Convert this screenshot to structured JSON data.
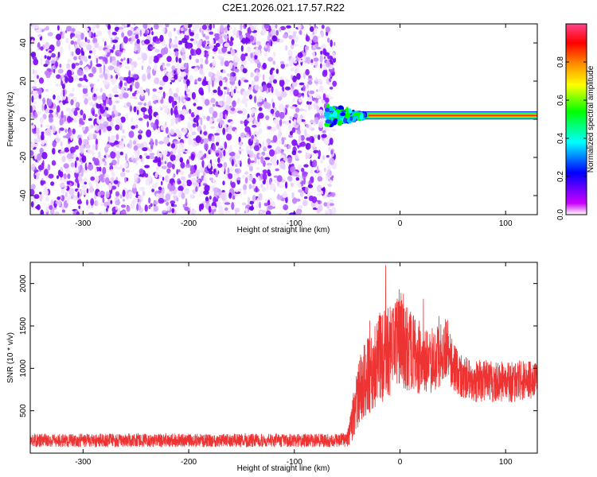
{
  "chart_data": [
    {
      "type": "heatmap",
      "title": "C2E1.2026.021.17.57.R22",
      "xlabel": "Height of straight line (km)",
      "ylabel": "Frequency (Hz)",
      "xlim": [
        -350,
        130
      ],
      "ylim": [
        -50,
        50
      ],
      "x_ticks": [
        -300,
        -200,
        -100,
        0,
        100
      ],
      "y_ticks": [
        -40,
        -20,
        0,
        20,
        40
      ],
      "colorbar": {
        "label": "Normalized spectral amplitude",
        "range": [
          0,
          1
        ],
        "ticks": [
          "0.0",
          "0.2",
          "0.4",
          "0.6",
          "0.8"
        ],
        "colors": [
          "#ffffff",
          "#cc00ff",
          "#0000ff",
          "#00ffff",
          "#00ff00",
          "#ffff00",
          "#ff8000",
          "#ff0000",
          "#ff4488"
        ]
      },
      "noise_region": {
        "x_range": [
          -350,
          -65
        ],
        "amplitude_range": [
          0.0,
          0.2
        ]
      },
      "signal_band": {
        "x_range": [
          -70,
          130
        ],
        "frequency_hz": 2,
        "peak_amplitude": 0.9
      },
      "grid": false
    },
    {
      "type": "line",
      "xlabel": "Height of straight line (km)",
      "ylabel": "SNR (10 * v/v)",
      "xlim": [
        -350,
        130
      ],
      "ylim": [
        0,
        2250
      ],
      "x_ticks": [
        -300,
        -200,
        -100,
        0,
        100
      ],
      "y_ticks": [
        500,
        1000,
        1500,
        2000
      ],
      "series": [
        {
          "color": "#ee3333",
          "x": [
            -350,
            -300,
            -250,
            -200,
            -150,
            -100,
            -60,
            -50,
            -45,
            -40,
            -35,
            -30,
            -25,
            -20,
            -15,
            -10,
            -5,
            0,
            5,
            10,
            15,
            20,
            25,
            30,
            35,
            40,
            45,
            50,
            60,
            70,
            80,
            90,
            100,
            110,
            120,
            130
          ],
          "mean": [
            150,
            150,
            150,
            150,
            150,
            150,
            150,
            160,
            400,
            700,
            800,
            900,
            1000,
            1100,
            1150,
            1200,
            1300,
            1400,
            1300,
            1200,
            1150,
            1100,
            1050,
            1100,
            1150,
            1200,
            1250,
            1000,
            900,
            850,
            850,
            850,
            850,
            850,
            850,
            850
          ],
          "spread": [
            80,
            80,
            80,
            80,
            80,
            80,
            80,
            100,
            250,
            400,
            450,
            500,
            500,
            550,
            550,
            550,
            550,
            600,
            550,
            500,
            450,
            450,
            400,
            400,
            400,
            400,
            350,
            300,
            250,
            250,
            250,
            250,
            250,
            250,
            250,
            250
          ]
        }
      ],
      "grid": false
    }
  ]
}
